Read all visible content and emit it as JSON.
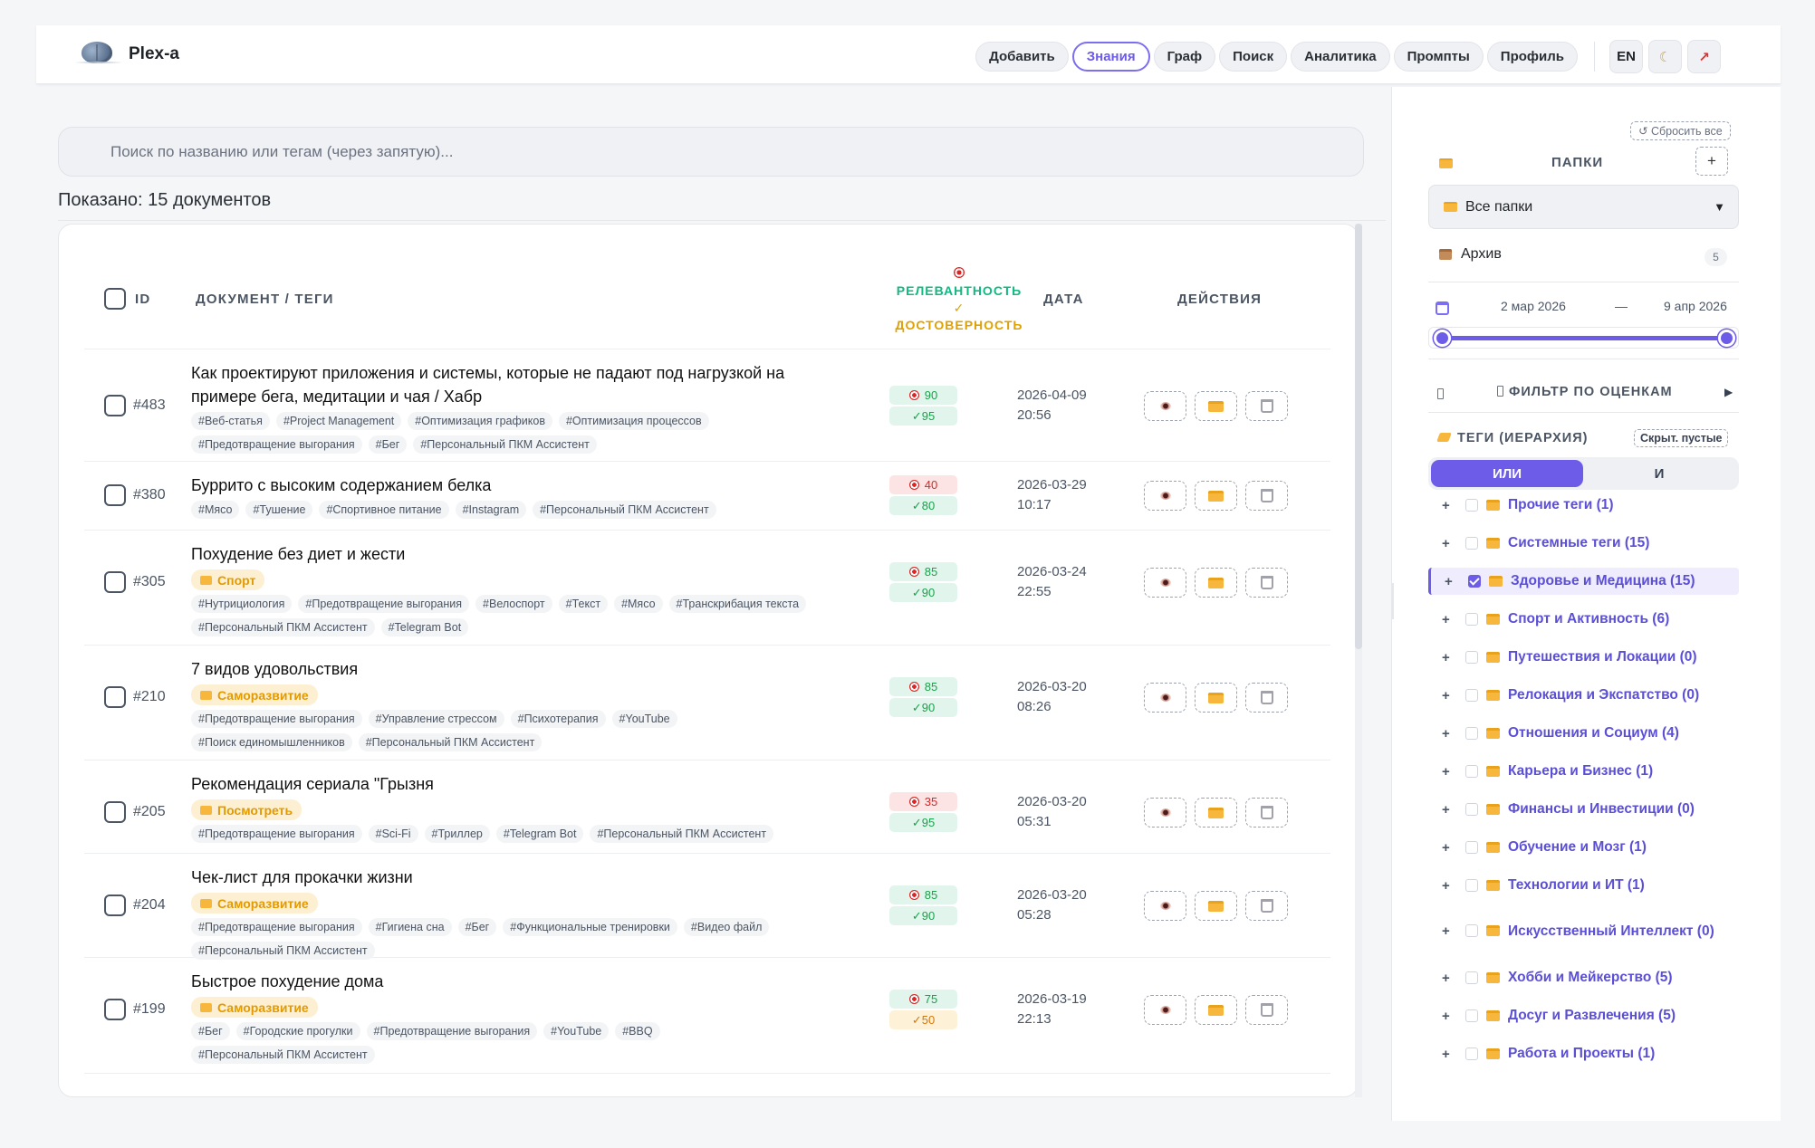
{
  "app": {
    "title": "Plex-a"
  },
  "nav": {
    "items": [
      "Добавить",
      "Знания",
      "Граф",
      "Поиск",
      "Аналитика",
      "Промпты",
      "Профиль"
    ],
    "active": "Знания",
    "lang": "EN",
    "theme_icon": "moon-icon",
    "logout_icon": "arrow-out-icon"
  },
  "search": {
    "placeholder": "Поиск по названию или тегам (через запятую)..."
  },
  "shown": "Показано: 15 документов",
  "table": {
    "headers": {
      "id": "ID",
      "doc": "ДОКУМЕНТ / ТЕГИ",
      "relevance": "РЕЛЕВАНТНОСТЬ",
      "reliability": "ДОСТОВЕРНОСТЬ",
      "date": "ДАТА",
      "actions": "ДЕЙСТВИЯ"
    },
    "rows": [
      {
        "id": "#483",
        "title": "Как проектируют приложения и системы, которые не падают под нагрузкой на примере бега, медитации и чая / Хабр",
        "folder": "",
        "tags": [
          "#Веб-статья",
          "#Project Management",
          "#Оптимизация графиков",
          "#Оптимизация процессов",
          "#Предотвращение выгорания",
          "#Бег",
          "#Персональный ПКМ Ассистент"
        ],
        "relevance": "90",
        "reliability": "95",
        "rel_color": "g",
        "relia_color": "g",
        "date": "2026-04-09",
        "time": "20:56"
      },
      {
        "id": "#380",
        "title": "Буррито с высоким содержанием белка",
        "folder": "",
        "tags": [
          "#Мясо",
          "#Тушение",
          "#Спортивное питание",
          "#Instagram",
          "#Персональный ПКМ Ассистент"
        ],
        "relevance": "40",
        "reliability": "80",
        "rel_color": "r",
        "relia_color": "g",
        "date": "2026-03-29",
        "time": "10:17"
      },
      {
        "id": "#305",
        "title": "Похудение без диет и жести",
        "folder": "Спорт",
        "tags": [
          "#Нутрициология",
          "#Предотвращение выгорания",
          "#Велоспорт",
          "#Текст",
          "#Мясо",
          "#Транскрибация текста",
          "#Персональный ПКМ Ассистент",
          "#Telegram Bot"
        ],
        "relevance": "85",
        "reliability": "90",
        "rel_color": "g",
        "relia_color": "g",
        "date": "2026-03-24",
        "time": "22:55"
      },
      {
        "id": "#210",
        "title": "7 видов удовольствия",
        "folder": "Саморазвитие",
        "tags": [
          "#Предотвращение выгорания",
          "#Управление стрессом",
          "#Психотерапия",
          "#YouTube",
          "#Поиск единомышленников",
          "#Персональный ПКМ Ассистент"
        ],
        "relevance": "85",
        "reliability": "90",
        "rel_color": "g",
        "relia_color": "g",
        "date": "2026-03-20",
        "time": "08:26"
      },
      {
        "id": "#205",
        "title": "Рекомендация сериала \"Грызня",
        "folder": "Посмотреть",
        "tags": [
          "#Предотвращение выгорания",
          "#Sci-Fi",
          "#Триллер",
          "#Telegram Bot",
          "#Персональный ПКМ Ассистент"
        ],
        "relevance": "35",
        "reliability": "95",
        "rel_color": "r",
        "relia_color": "g",
        "date": "2026-03-20",
        "time": "05:31"
      },
      {
        "id": "#204",
        "title": "Чек-лист для прокачки жизни",
        "folder": "Саморазвитие",
        "tags": [
          "#Предотвращение выгорания",
          "#Гигиена сна",
          "#Бег",
          "#Функциональные тренировки",
          "#Видео файл",
          "#Персональный ПКМ Ассистент"
        ],
        "relevance": "85",
        "reliability": "90",
        "rel_color": "g",
        "relia_color": "g",
        "date": "2026-03-20",
        "time": "05:28"
      },
      {
        "id": "#199",
        "title": "Быстрое похудение дома",
        "folder": "Саморазвитие",
        "tags": [
          "#Бег",
          "#Городские прогулки",
          "#Предотвращение выгорания",
          "#YouTube",
          "#BBQ",
          "#Персональный ПКМ Ассистент"
        ],
        "relevance": "75",
        "reliability": "50",
        "rel_color": "g",
        "relia_color": "y",
        "date": "2026-03-19",
        "time": "22:13"
      }
    ]
  },
  "sidebar": {
    "reset": "↺ Сбросить все",
    "folders_head": "ПАПКИ",
    "add": "+",
    "folder_select": "Все папки",
    "archive": {
      "label": "Архив",
      "count": "5"
    },
    "date_from": "2 мар 2026",
    "date_dash": "—",
    "date_to": "9 апр 2026",
    "range": {
      "start": 0.0,
      "end": 1.0
    },
    "rating_filter": "ФИЛЬТР ПО ОЦЕНКАМ",
    "tags_head": "ТЕГИ (ИЕРАРХИЯ)",
    "hide_empty": "Скрыт. пустые",
    "mode_or": "ИЛИ",
    "mode_and": "И",
    "tag_tree": [
      {
        "label": "Прочие теги (1)",
        "checked": false
      },
      {
        "label": "Системные теги (15)",
        "checked": false
      },
      {
        "label": "Здоровье и Медицина (15)",
        "checked": true
      },
      {
        "label": "Спорт и Активность (6)",
        "checked": false
      },
      {
        "label": "Путешествия и Локации (0)",
        "checked": false
      },
      {
        "label": "Релокация и Экспатство (0)",
        "checked": false
      },
      {
        "label": "Отношения и Социум (4)",
        "checked": false
      },
      {
        "label": "Карьера и Бизнес (1)",
        "checked": false
      },
      {
        "label": "Финансы и Инвестиции (0)",
        "checked": false
      },
      {
        "label": "Обучение и Мозг (1)",
        "checked": false
      },
      {
        "label": "Технологии и ИТ (1)",
        "checked": false
      },
      {
        "label": "Искусственный Интеллект (0)",
        "checked": false
      },
      {
        "label": "Хобби и Мейкерство (5)",
        "checked": false
      },
      {
        "label": "Досуг и Развлечения (5)",
        "checked": false
      },
      {
        "label": "Работа и Проекты (1)",
        "checked": false
      }
    ]
  }
}
